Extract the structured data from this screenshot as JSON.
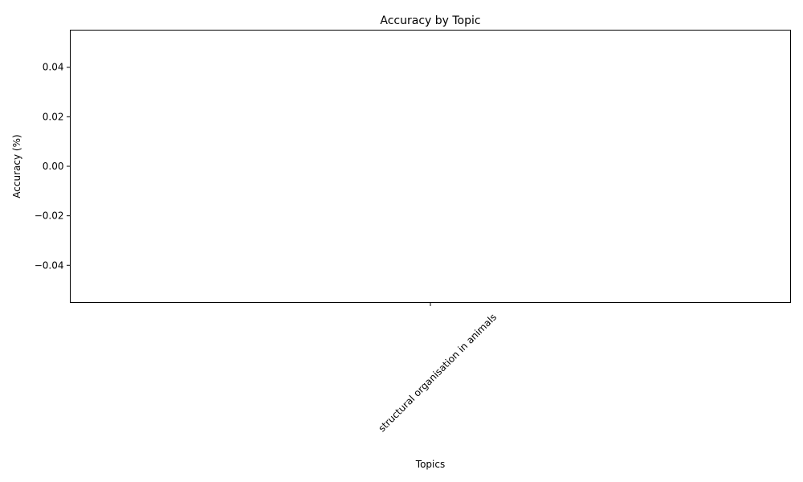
{
  "chart_data": {
    "type": "bar",
    "title": "Accuracy by Topic",
    "xlabel": "Topics",
    "ylabel": "Accuracy (%)",
    "categories": [
      "structural organisation in animals"
    ],
    "values": [
      0
    ],
    "ylim": [
      -0.055,
      0.055
    ],
    "yticks": [
      -0.04,
      -0.02,
      0.0,
      0.02,
      0.04
    ],
    "ytick_labels": [
      "−0.04",
      "−0.02",
      "0.00",
      "0.02",
      "0.04"
    ],
    "xtick_rotation_deg": 45,
    "grid": false,
    "legend": "none"
  }
}
